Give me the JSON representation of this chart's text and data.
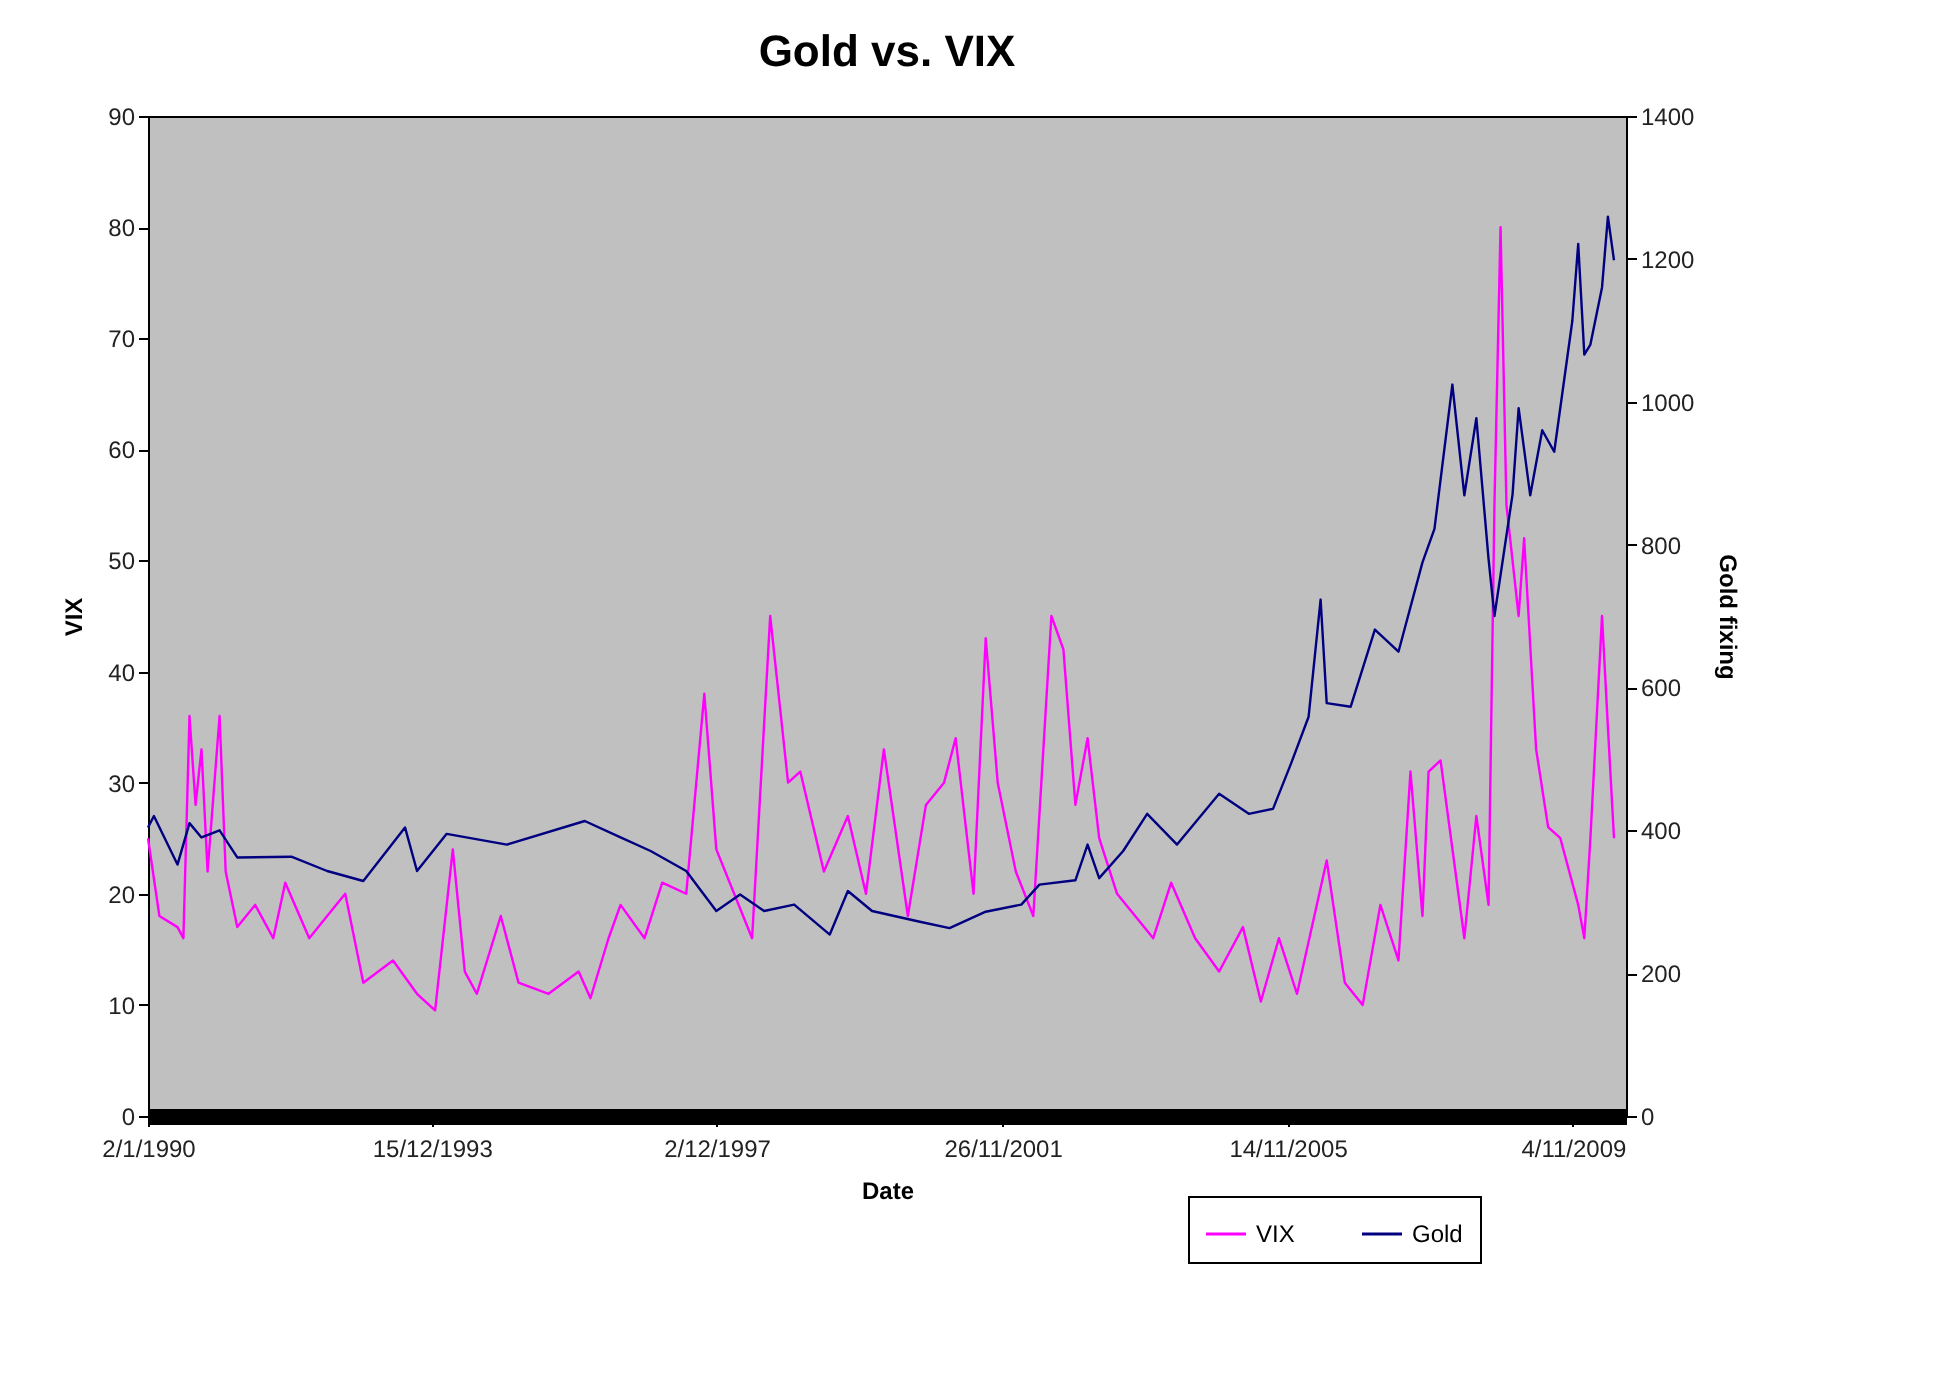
{
  "chart_data": {
    "type": "line",
    "title": "Gold vs. VIX",
    "xlabel": "Date",
    "ylabel": "VIX",
    "y2label": "Gold fixing",
    "xlim": [
      "1990-01-02",
      "2010-08-01"
    ],
    "xticks": [
      {
        "value": "1990-01-02",
        "label": "2/1/1990"
      },
      {
        "value": "1993-12-15",
        "label": "15/12/1993"
      },
      {
        "value": "1997-12-02",
        "label": "2/12/1997"
      },
      {
        "value": "2001-11-26",
        "label": "26/11/2001"
      },
      {
        "value": "2005-11-14",
        "label": "14/11/2005"
      },
      {
        "value": "2009-11-04",
        "label": "4/11/2009"
      }
    ],
    "ylim": [
      0,
      90
    ],
    "yticks": [
      0,
      10,
      20,
      30,
      40,
      50,
      60,
      70,
      80,
      90
    ],
    "y2lim": [
      0,
      1400
    ],
    "y2ticks": [
      0,
      200,
      400,
      600,
      800,
      1000,
      1200,
      1400
    ],
    "legend": "bottom right",
    "series": [
      {
        "name": "VIX",
        "color": "#ff00ff",
        "x": [
          "1990-01-02",
          "1990-03",
          "1990-06",
          "1990-07",
          "1990-08",
          "1990-09",
          "1990-10",
          "1990-11",
          "1991-01",
          "1991-02",
          "1991-04",
          "1991-07",
          "1991-10",
          "1991-12",
          "1992-04",
          "1992-07",
          "1992-10",
          "1993-01",
          "1993-06",
          "1993-10",
          "1993-12",
          "1994-01",
          "1994-04",
          "1994-06",
          "1994-08",
          "1994-12",
          "1995-03",
          "1995-08",
          "1996-01",
          "1996-03",
          "1996-06",
          "1996-08",
          "1996-12",
          "1997-03",
          "1997-07",
          "1997-10",
          "1997-12",
          "1998-06",
          "1998-09",
          "1998-12",
          "1999-02",
          "1999-06",
          "1999-10",
          "2000-01",
          "2000-04",
          "2000-08",
          "2000-11",
          "2001-02",
          "2001-04",
          "2001-07",
          "2001-09",
          "2001-11",
          "2002-02",
          "2002-05",
          "2002-08",
          "2002-10",
          "2002-12",
          "2003-02",
          "2003-04",
          "2003-07",
          "2003-10",
          "2004-01",
          "2004-04",
          "2004-08",
          "2004-12",
          "2005-04",
          "2005-07",
          "2005-10",
          "2006-01",
          "2006-06",
          "2006-09",
          "2006-12",
          "2007-03",
          "2007-06",
          "2007-08",
          "2007-10",
          "2007-11",
          "2008-01",
          "2008-05",
          "2008-07",
          "2008-09",
          "2008-10",
          "2008-11",
          "2008-12",
          "2009-02",
          "2009-03",
          "2009-05",
          "2009-07",
          "2009-09",
          "2009-12",
          "2010-01",
          "2010-02",
          "2010-04",
          "2010-05",
          "2010-06"
        ],
        "values": [
          25,
          18,
          17,
          16,
          36,
          28,
          33,
          22,
          36,
          22,
          17,
          19,
          16,
          21,
          16,
          18,
          20,
          12,
          14,
          11,
          10,
          9.5,
          24,
          13,
          11,
          18,
          12,
          11,
          13,
          10.6,
          16,
          19,
          16,
          21,
          20,
          38,
          24,
          16,
          45,
          30,
          31,
          22,
          27,
          20,
          33,
          18,
          28,
          30,
          34,
          20,
          43,
          30,
          22,
          18,
          45,
          42,
          28,
          34,
          25,
          20,
          18,
          16,
          21,
          16,
          13,
          17,
          10.3,
          16,
          11,
          23,
          12,
          10,
          19,
          14,
          31,
          18,
          31,
          32,
          16,
          27,
          19,
          55,
          80,
          55,
          45,
          52,
          33,
          26,
          25,
          19,
          16,
          25,
          45,
          35,
          25
        ]
      },
      {
        "name": "Gold",
        "color": "#000080",
        "axis": "y2",
        "x": [
          "1990-01-02",
          "1990-02",
          "1990-06",
          "1990-08",
          "1990-10",
          "1991-01",
          "1991-04",
          "1992-01",
          "1992-07",
          "1993-01",
          "1993-08",
          "1993-10",
          "1994-03",
          "1995-01",
          "1996-02",
          "1996-08",
          "1997-01",
          "1997-07",
          "1997-12",
          "1998-04",
          "1998-08",
          "1999-01",
          "1999-07",
          "1999-10",
          "2000-02",
          "2000-10",
          "2001-03",
          "2001-09",
          "2002-03",
          "2002-06",
          "2002-12",
          "2003-02",
          "2003-04",
          "2003-08",
          "2003-12",
          "2004-05",
          "2004-12",
          "2005-05",
          "2005-09",
          "2005-12",
          "2006-03",
          "2006-05",
          "2006-06",
          "2006-10",
          "2007-02",
          "2007-06",
          "2007-10",
          "2007-12",
          "2008-03",
          "2008-05",
          "2008-07",
          "2008-09",
          "2008-10",
          "2009-01",
          "2009-02",
          "2009-04",
          "2009-06",
          "2009-08",
          "2009-11",
          "2009-12",
          "2010-01",
          "2010-02",
          "2010-04",
          "2010-05",
          "2010-06"
        ],
        "values": [
          404,
          420,
          352,
          410,
          390,
          400,
          362,
          363,
          343,
          329,
          404,
          343,
          395,
          380,
          413,
          390,
          371,
          343,
          287,
          310,
          287,
          296,
          254,
          315,
          287,
          272,
          263,
          286,
          296,
          324,
          330,
          380,
          333,
          371,
          423,
          380,
          451,
          423,
          430,
          493,
          559,
          723,
          578,
          573,
          681,
          650,
          775,
          822,
          1024,
          869,
          977,
          780,
          700,
          870,
          991,
          869,
          960,
          930,
          1113,
          1221,
          1066,
          1080,
          1160,
          1259,
          1198
        ]
      }
    ]
  }
}
